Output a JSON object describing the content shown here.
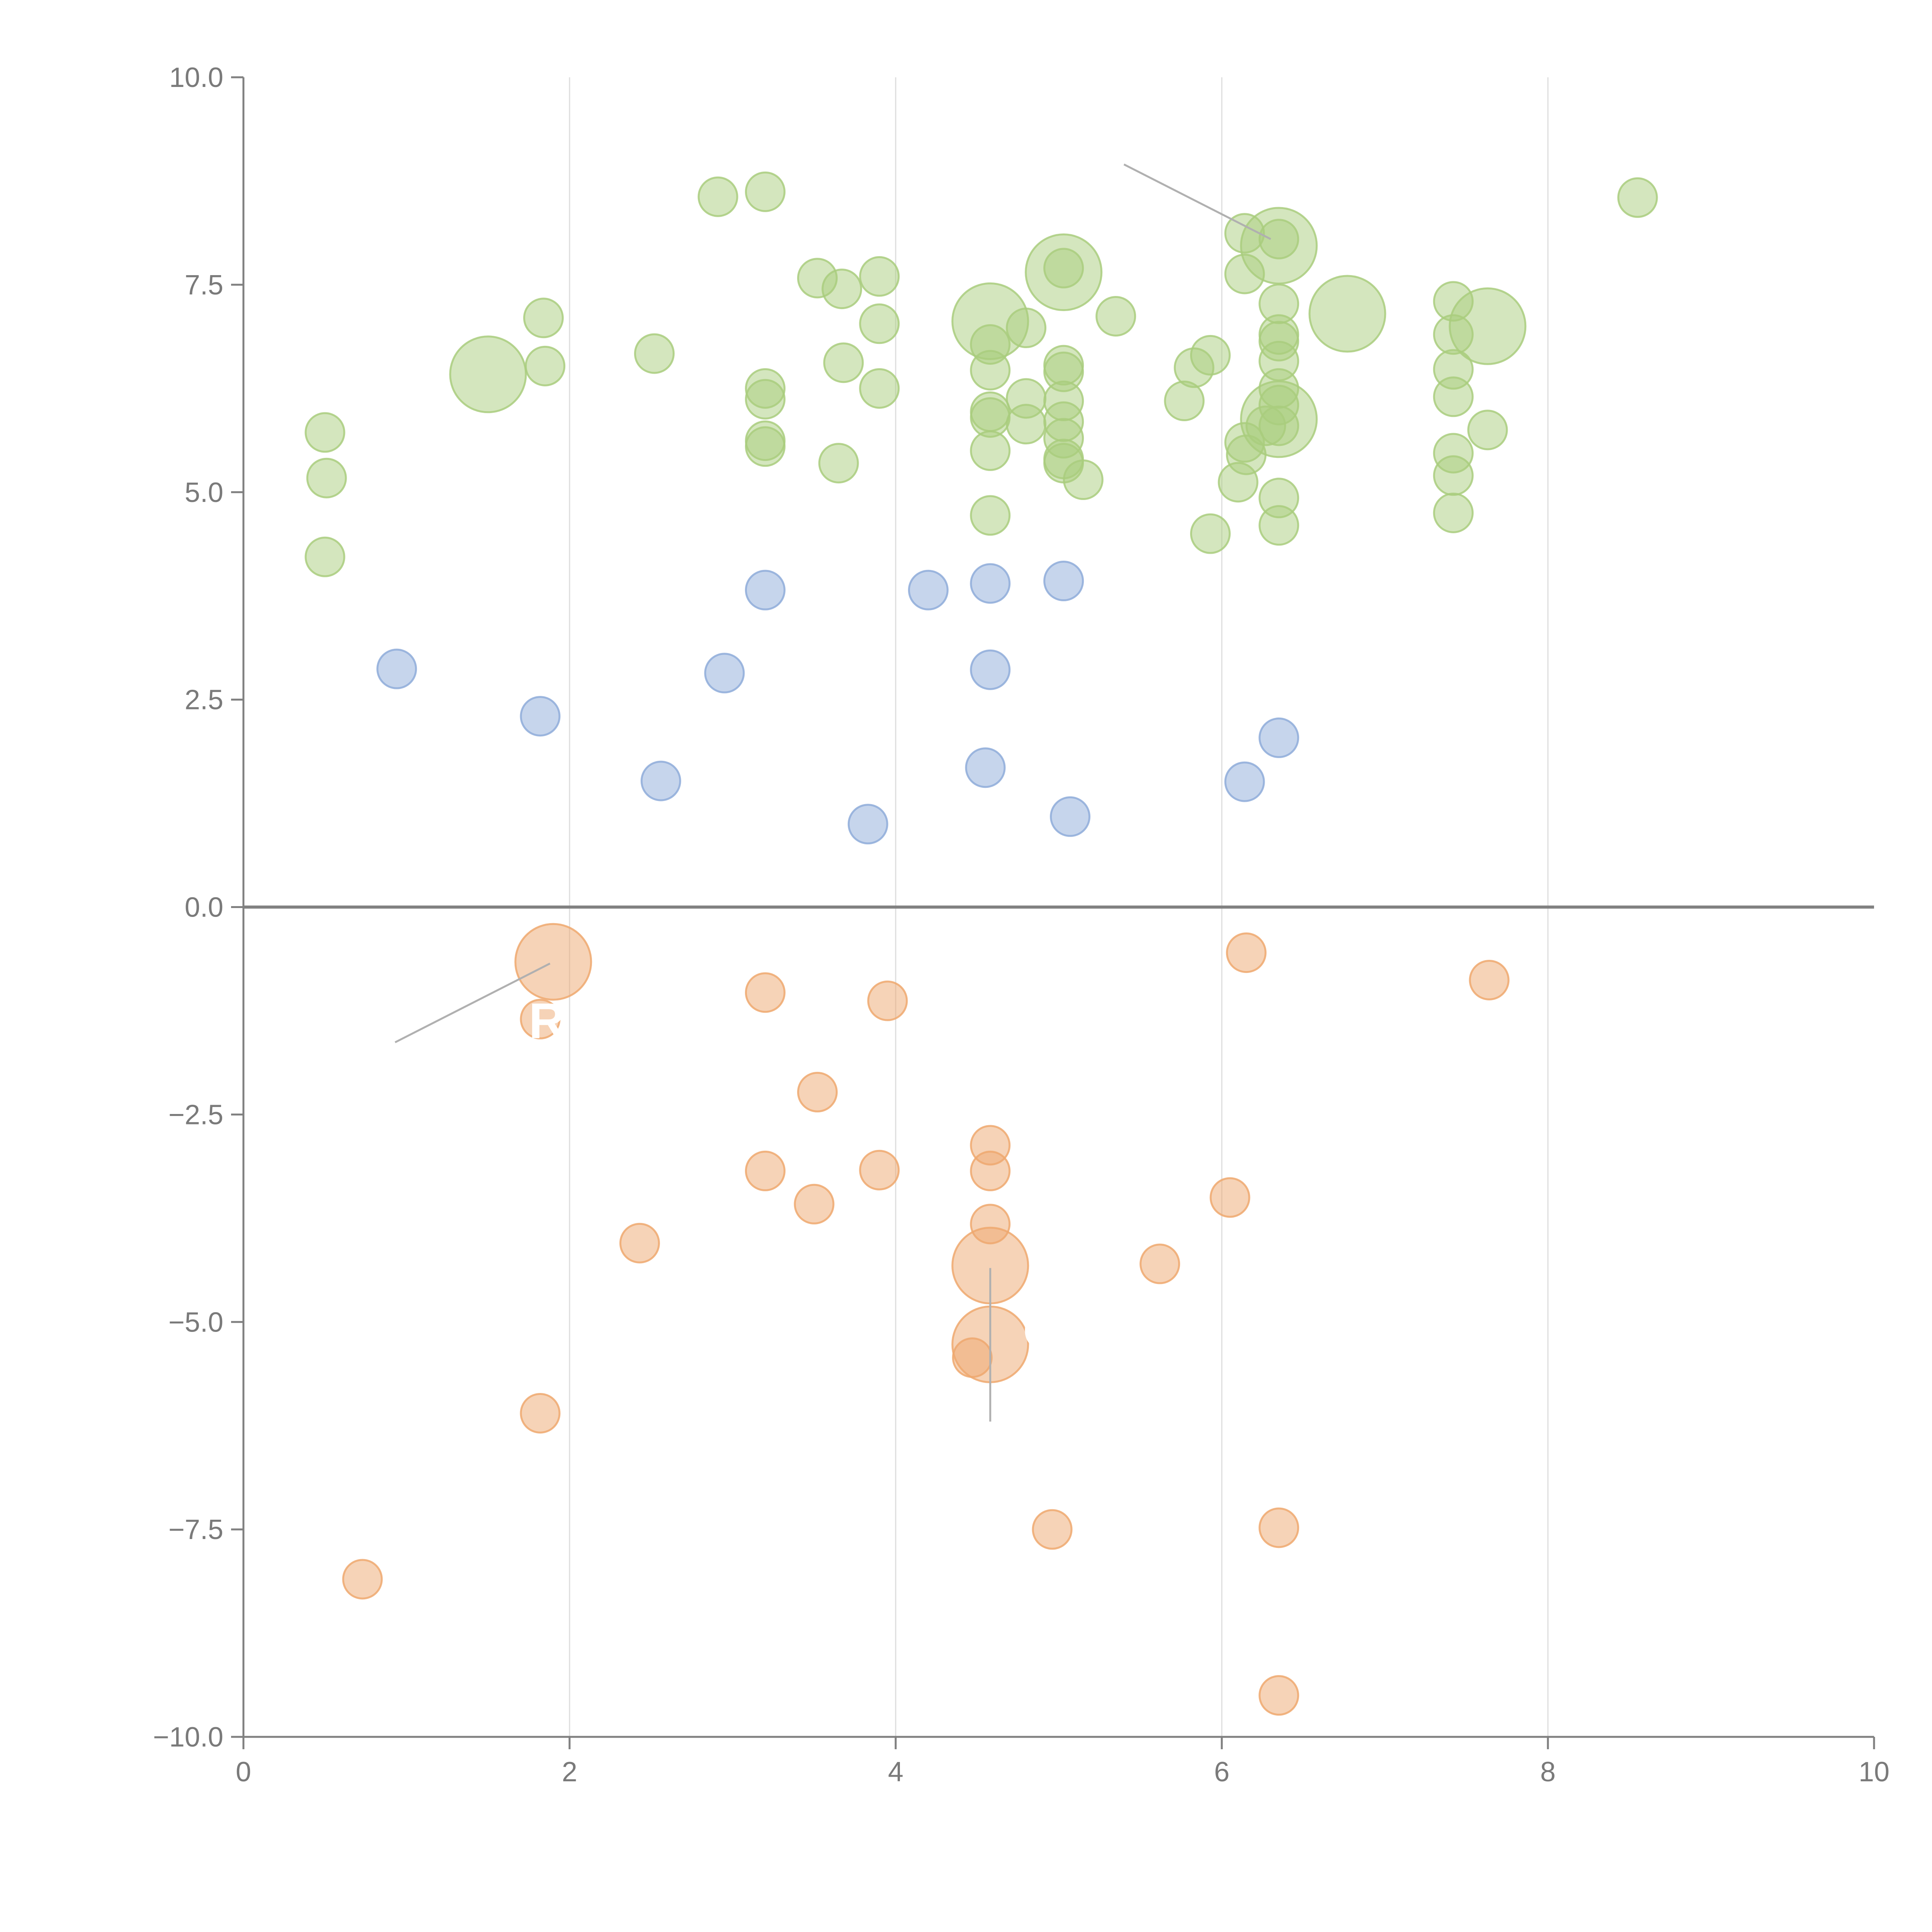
{
  "chart_data": {
    "type": "scatter",
    "title": "",
    "xlabel": "",
    "ylabel": "",
    "xlim": [
      0,
      10
    ],
    "ylim": [
      -10,
      10
    ],
    "x_ticks": [
      0,
      2,
      4,
      6,
      8,
      10
    ],
    "y_ticks": [
      10,
      7.5,
      5,
      2.5,
      0,
      -2.5,
      -5,
      -7.5,
      -10
    ],
    "x_tick_labels": [
      "0",
      "2",
      "4",
      "6",
      "8",
      "10"
    ],
    "y_tick_labels": [
      "10.0",
      "7.5",
      "5.0",
      "2.5",
      "0.0",
      "−2.5",
      "−5.0",
      "−7.5",
      "−10.0"
    ],
    "grid": "vertical",
    "legend": "none",
    "colors": {
      "green": "#a9cd7e",
      "blue": "#8eacd9",
      "orange": "#eea86f",
      "axis": "#808080",
      "grid": "#dddddd",
      "annotation_line": "#b0b0b0",
      "annotation_text": "#ffffff"
    },
    "series": [
      {
        "name": "green",
        "color": "#a9cd7e",
        "points": [
          [
            0.5,
            5.72
          ],
          [
            0.51,
            5.17
          ],
          [
            0.5,
            4.22
          ],
          [
            1.5,
            6.42,
            "large"
          ],
          [
            1.84,
            7.1
          ],
          [
            1.85,
            6.52
          ],
          [
            2.52,
            6.67
          ],
          [
            2.91,
            8.56
          ],
          [
            3.2,
            8.62
          ],
          [
            3.2,
            6.25
          ],
          [
            3.2,
            6.12
          ],
          [
            3.2,
            5.62
          ],
          [
            3.2,
            5.55
          ],
          [
            3.52,
            7.58
          ],
          [
            3.67,
            7.45
          ],
          [
            3.68,
            6.56
          ],
          [
            3.65,
            5.35
          ],
          [
            3.9,
            7.6
          ],
          [
            3.9,
            7.03
          ],
          [
            3.9,
            6.25
          ],
          [
            4.58,
            7.06,
            "large"
          ],
          [
            4.58,
            6.78
          ],
          [
            4.58,
            6.47
          ],
          [
            4.58,
            5.97
          ],
          [
            4.58,
            5.9
          ],
          [
            4.58,
            5.5
          ],
          [
            4.58,
            4.72
          ],
          [
            4.8,
            6.98
          ],
          [
            4.8,
            6.13
          ],
          [
            4.8,
            5.82
          ],
          [
            5.03,
            7.65,
            "large"
          ],
          [
            5.03,
            7.7
          ],
          [
            5.03,
            6.53
          ],
          [
            5.03,
            6.45
          ],
          [
            5.03,
            6.1
          ],
          [
            5.03,
            5.85
          ],
          [
            5.03,
            5.65
          ],
          [
            5.03,
            5.4
          ],
          [
            5.03,
            5.35
          ],
          [
            5.15,
            5.15
          ],
          [
            5.35,
            7.12
          ],
          [
            5.77,
            6.1
          ],
          [
            5.83,
            6.5
          ],
          [
            5.93,
            6.65
          ],
          [
            5.93,
            4.5
          ],
          [
            6.14,
            8.12
          ],
          [
            6.14,
            7.63
          ],
          [
            6.1,
            5.12
          ],
          [
            6.15,
            5.45
          ],
          [
            6.14,
            5.6
          ],
          [
            6.27,
            5.8
          ],
          [
            6.35,
            7.97,
            "large"
          ],
          [
            6.35,
            8.05
          ],
          [
            6.35,
            7.27
          ],
          [
            6.35,
            6.9
          ],
          [
            6.35,
            6.82
          ],
          [
            6.35,
            6.58
          ],
          [
            6.35,
            6.25
          ],
          [
            6.35,
            6.05
          ],
          [
            6.35,
            5.88,
            "large"
          ],
          [
            6.35,
            5.8
          ],
          [
            6.35,
            4.93
          ],
          [
            6.35,
            4.6
          ],
          [
            6.77,
            7.15,
            "large"
          ],
          [
            7.42,
            7.3
          ],
          [
            7.42,
            6.9
          ],
          [
            7.42,
            6.48
          ],
          [
            7.42,
            6.15
          ],
          [
            7.42,
            5.47
          ],
          [
            7.42,
            5.2
          ],
          [
            7.42,
            4.75
          ],
          [
            7.63,
            7.0,
            "large"
          ],
          [
            7.63,
            5.75
          ],
          [
            8.55,
            8.55
          ]
        ]
      },
      {
        "name": "blue",
        "color": "#8eacd9",
        "points": [
          [
            0.94,
            2.87
          ],
          [
            1.82,
            2.3
          ],
          [
            2.56,
            1.52
          ],
          [
            2.95,
            2.82
          ],
          [
            3.2,
            3.82
          ],
          [
            3.83,
            1.0
          ],
          [
            4.2,
            3.82
          ],
          [
            4.58,
            3.9
          ],
          [
            4.58,
            2.86
          ],
          [
            4.55,
            1.68
          ],
          [
            5.03,
            3.93
          ],
          [
            5.07,
            1.09
          ],
          [
            6.14,
            1.51
          ],
          [
            6.35,
            2.04
          ]
        ]
      },
      {
        "name": "orange",
        "color": "#eea86f",
        "points": [
          [
            1.9,
            -0.66,
            "large"
          ],
          [
            1.82,
            -1.35
          ],
          [
            0.73,
            -8.1
          ],
          [
            1.82,
            -6.1
          ],
          [
            2.43,
            -4.05
          ],
          [
            3.2,
            -1.03
          ],
          [
            3.2,
            -3.18
          ],
          [
            3.52,
            -2.23
          ],
          [
            3.5,
            -3.58
          ],
          [
            3.9,
            -3.17
          ],
          [
            3.95,
            -1.13
          ],
          [
            4.47,
            -5.43
          ],
          [
            4.58,
            -2.87
          ],
          [
            4.58,
            -3.18
          ],
          [
            4.58,
            -3.82
          ],
          [
            4.58,
            -4.32,
            "large"
          ],
          [
            4.58,
            -5.27,
            "large"
          ],
          [
            4.96,
            -7.5
          ],
          [
            5.62,
            -4.3
          ],
          [
            6.05,
            -3.5
          ],
          [
            6.15,
            -0.55
          ],
          [
            6.35,
            -7.48
          ],
          [
            6.35,
            -9.5
          ],
          [
            7.64,
            -0.88
          ]
        ]
      }
    ],
    "annotations": [
      {
        "text": "R",
        "x": 1.75,
        "y": -1.37
      },
      {
        "text": "C",
        "x": 4.78,
        "y": -5.1
      }
    ],
    "annotation_lines": [
      [
        [
          5.4,
          8.95
        ],
        [
          6.3,
          8.05
        ]
      ],
      [
        [
          0.93,
          -1.63
        ],
        [
          1.88,
          -0.68
        ]
      ],
      [
        [
          4.58,
          -4.35
        ],
        [
          4.58,
          -6.2
        ]
      ]
    ]
  }
}
